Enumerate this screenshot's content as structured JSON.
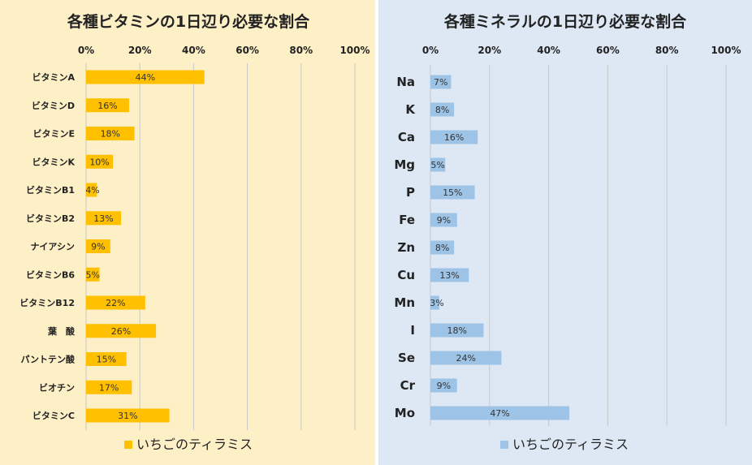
{
  "chart_data": [
    {
      "type": "bar",
      "orientation": "horizontal",
      "title": "各種ビタミンの1日辺り必要な割合",
      "categories": [
        "ビタミンA",
        "ビタミンD",
        "ビタミンE",
        "ビタミンK",
        "ビタミンB1",
        "ビタミンB2",
        "ナイアシン",
        "ビタミンB6",
        "ビタミンB12",
        "葉　酸",
        "パントテン酸",
        "ビオチン",
        "ビタミンC"
      ],
      "series": [
        {
          "name": "いちごのティラミス",
          "values": [
            44,
            16,
            18,
            10,
            4,
            13,
            9,
            5,
            22,
            26,
            15,
            17,
            31
          ],
          "labels": [
            "44%",
            "16%",
            "18%",
            "10%",
            "4%",
            "13%",
            "9%",
            "5%",
            "22%",
            "26%",
            "15%",
            "17%",
            "31%"
          ]
        }
      ],
      "xlim": [
        0,
        100
      ],
      "ticks": [
        "0%",
        "20%",
        "40%",
        "60%",
        "80%",
        "100%"
      ],
      "legend": "bottom",
      "color": "#ffc000"
    },
    {
      "type": "bar",
      "orientation": "horizontal",
      "title": "各種ミネラルの1日辺り必要な割合",
      "categories": [
        "Na",
        "K",
        "Ca",
        "Mg",
        "P",
        "Fe",
        "Zn",
        "Cu",
        "Mn",
        "I",
        "Se",
        "Cr",
        "Mo"
      ],
      "series": [
        {
          "name": "いちごのティラミス",
          "values": [
            7,
            8,
            16,
            5,
            15,
            9,
            8,
            13,
            3,
            18,
            24,
            9,
            47
          ],
          "labels": [
            "7%",
            "8%",
            "16%",
            "5%",
            "15%",
            "9%",
            "8%",
            "13%",
            "3%",
            "18%",
            "24%",
            "9%",
            "47%"
          ]
        }
      ],
      "xlim": [
        0,
        100
      ],
      "ticks": [
        "0%",
        "20%",
        "40%",
        "60%",
        "80%",
        "100%"
      ],
      "legend": "bottom",
      "color": "#9dc3e6"
    }
  ]
}
